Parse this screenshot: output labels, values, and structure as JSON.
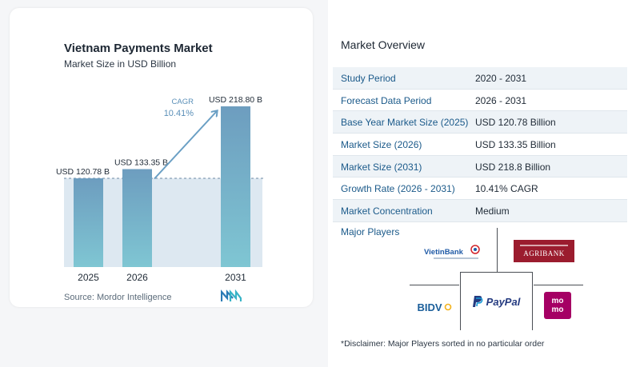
{
  "chart_data": {
    "type": "bar",
    "title": "Vietnam Payments Market",
    "subtitle": "Market Size in USD Billion",
    "categories": [
      "2025",
      "2026",
      "2031"
    ],
    "values": [
      120.78,
      133.35,
      218.8
    ],
    "value_labels": [
      "USD 120.78 B",
      "USD 133.35 B",
      "USD 218.80 B"
    ],
    "cagr_label": "CAGR",
    "cagr_value": "10.41%",
    "colors": {
      "bar_top": "#6d9dbf",
      "bar_bottom": "#7fc6d3",
      "band": "#dde8f1",
      "arrow": "#6a9fc4"
    }
  },
  "source": "Source:  Mordor Intelligence",
  "logo_icon": "mordor-intelligence-logo",
  "overview": {
    "title": "Market Overview",
    "rows": [
      {
        "key": "Study Period",
        "value": "2020 - 2031"
      },
      {
        "key": "Forecast Data Period",
        "value": "2026 - 2031"
      },
      {
        "key": "Base Year Market Size (2025)",
        "value": "USD 120.78 Billion"
      },
      {
        "key": "Market Size (2026)",
        "value": "USD 133.35 Billion"
      },
      {
        "key": "Market Size (2031)",
        "value": "USD 218.8 Billion"
      },
      {
        "key": "Growth Rate (2026 - 2031)",
        "value": "10.41% CAGR"
      },
      {
        "key": "Market Concentration",
        "value": "Medium"
      }
    ]
  },
  "players": {
    "title": "Major Players",
    "logos": {
      "vietinbank": "VietinBank",
      "agribank": "AGRIBANK",
      "bidv": "BIDV",
      "paypal": "PayPal",
      "momo_top": "mo",
      "momo_bottom": "mo"
    },
    "disclaimer": "*Disclaimer: Major Players sorted in no particular order"
  }
}
